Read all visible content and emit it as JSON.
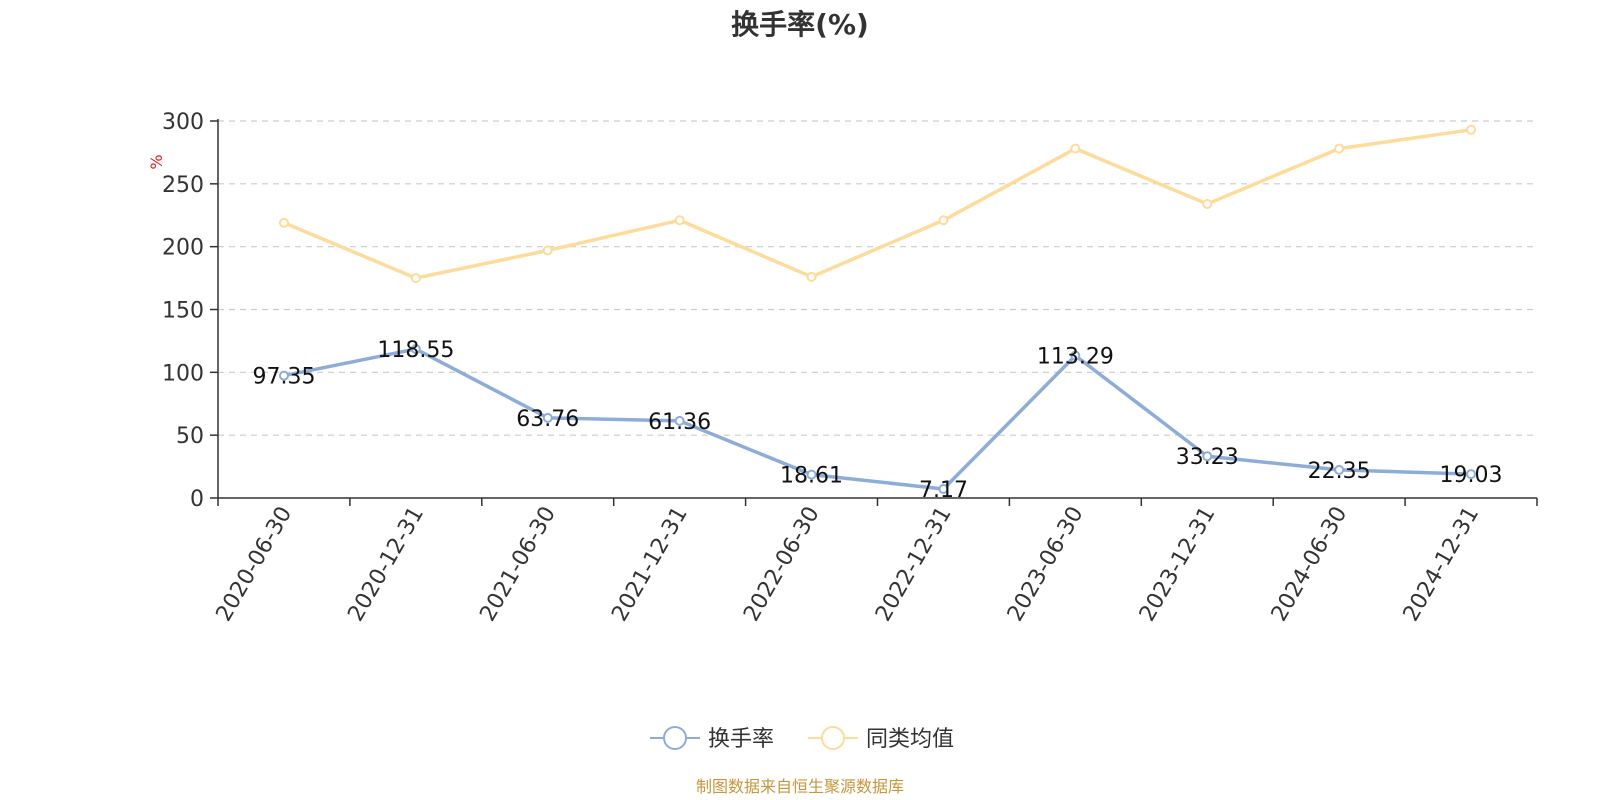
{
  "chart_data": {
    "type": "line",
    "title": "换手率(%)",
    "ylabel": "%",
    "ylim": [
      0,
      300
    ],
    "yticks": [
      0,
      50,
      100,
      150,
      200,
      250,
      300
    ],
    "grid": true,
    "legend_position": "bottom",
    "categories": [
      "2020-06-30",
      "2020-12-31",
      "2021-06-30",
      "2021-12-31",
      "2022-06-30",
      "2022-12-31",
      "2023-06-30",
      "2023-12-31",
      "2024-06-30",
      "2024-12-31"
    ],
    "series": [
      {
        "name": "换手率",
        "color": "#8eacd8",
        "show_labels": true,
        "values": [
          97.35,
          118.55,
          63.76,
          61.36,
          18.61,
          7.17,
          113.29,
          33.23,
          22.35,
          19.03
        ]
      },
      {
        "name": "同类均值",
        "color": "#fddb9a",
        "show_labels": false,
        "values": [
          219,
          175,
          197,
          221,
          176,
          221,
          278,
          234,
          278,
          293
        ]
      }
    ]
  },
  "footer": {
    "source": "制图数据来自恒生聚源数据库"
  }
}
